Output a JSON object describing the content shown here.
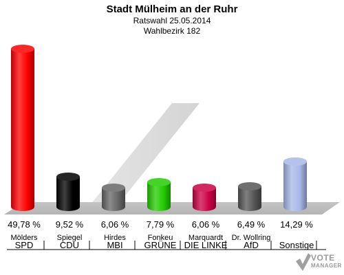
{
  "header": {
    "title": "Stadt Mülheim an der Ruhr",
    "subtitle1": "Ratswahl 25.05.2014",
    "subtitle2": "Wahlbezirk 182"
  },
  "chart_data": {
    "type": "bar",
    "categories": [
      "SPD",
      "CDU",
      "MBI",
      "GRÜNE",
      "DIE LINKE",
      "AfD",
      "Sonstige"
    ],
    "candidates": [
      "Mölders",
      "Spiegel",
      "Hirdes",
      "Fonkeu",
      "Marquardt",
      "Dr. Wollring",
      ""
    ],
    "values": [
      49.78,
      9.52,
      6.06,
      7.79,
      6.06,
      6.49,
      14.29
    ],
    "value_labels": [
      "49,78 %",
      "9,52 %",
      "6,06 %",
      "7,79 %",
      "6,06 %",
      "6,49 %",
      "14,29 %"
    ],
    "colors": [
      "#ff0000",
      "#000000",
      "#666666",
      "#22cc00",
      "#cc0044",
      "#555555",
      "#a8b8e8"
    ],
    "ylim": [
      0,
      50
    ]
  },
  "logo": {
    "line1": "VOTE",
    "line2": "MANAGER"
  }
}
